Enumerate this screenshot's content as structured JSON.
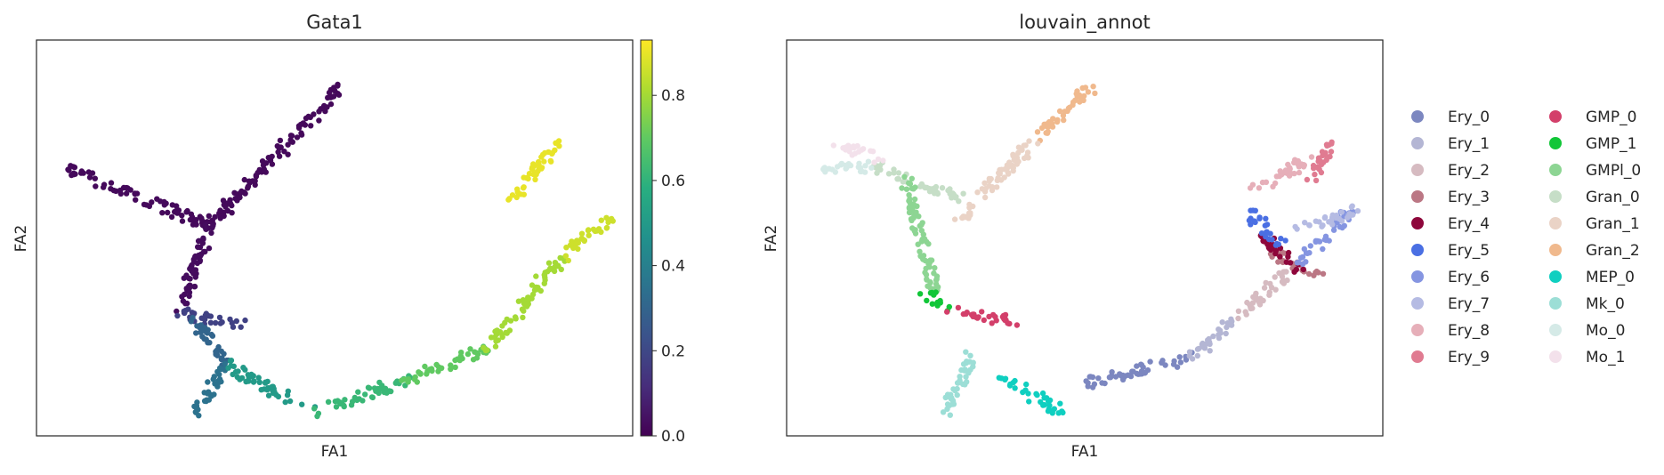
{
  "chart_data": [
    {
      "type": "scatter",
      "title": "Gata1",
      "xlabel": "FA1",
      "ylabel": "FA2",
      "grid": false,
      "colorbar": {
        "colormap": "viridis",
        "min": 0.0,
        "max": 0.93,
        "ticks": [
          "0.0",
          "0.2",
          "0.4",
          "0.6",
          "0.8"
        ],
        "tick_values": [
          0.0,
          0.2,
          0.4,
          0.6,
          0.8
        ]
      },
      "branches": [
        {
          "from": [
            0.51,
            0.88
          ],
          "to": [
            0.29,
            0.53
          ],
          "value": 0.02
        },
        {
          "from": [
            0.29,
            0.53
          ],
          "to": [
            0.05,
            0.68
          ],
          "value": 0.02
        },
        {
          "from": [
            0.29,
            0.53
          ],
          "to": [
            0.24,
            0.31
          ],
          "value": 0.03
        },
        {
          "from": [
            0.24,
            0.31
          ],
          "to": [
            0.35,
            0.28
          ],
          "value": 0.18
        },
        {
          "from": [
            0.26,
            0.3
          ],
          "to": [
            0.32,
            0.18
          ],
          "value": 0.3
        },
        {
          "from": [
            0.32,
            0.18
          ],
          "to": [
            0.27,
            0.06
          ],
          "value": 0.35
        },
        {
          "from": [
            0.32,
            0.18
          ],
          "to": [
            0.46,
            0.06
          ],
          "value": 0.5
        },
        {
          "from": [
            0.46,
            0.06
          ],
          "to": [
            0.62,
            0.14
          ],
          "value": 0.62
        },
        {
          "from": [
            0.62,
            0.14
          ],
          "to": [
            0.76,
            0.22
          ],
          "value": 0.7
        },
        {
          "from": [
            0.76,
            0.22
          ],
          "to": [
            0.88,
            0.45
          ],
          "value": 0.8
        },
        {
          "from": [
            0.88,
            0.45
          ],
          "to": [
            0.96,
            0.55
          ],
          "value": 0.86
        },
        {
          "from": [
            0.8,
            0.6
          ],
          "to": [
            0.88,
            0.75
          ],
          "value": 0.9
        }
      ]
    },
    {
      "type": "scatter",
      "title": "louvain_annot",
      "xlabel": "FA1",
      "ylabel": "FA2",
      "grid": false,
      "legend_position": "right",
      "legend": [
        {
          "name": "Ery_0",
          "color": "#7c87c0"
        },
        {
          "name": "Ery_1",
          "color": "#b4b6d4"
        },
        {
          "name": "Ery_2",
          "color": "#d6bbc1"
        },
        {
          "name": "Ery_3",
          "color": "#bb7784"
        },
        {
          "name": "Ery_4",
          "color": "#8e063b"
        },
        {
          "name": "Ery_5",
          "color": "#4a6fe3"
        },
        {
          "name": "Ery_6",
          "color": "#8595e1"
        },
        {
          "name": "Ery_7",
          "color": "#b5bbe3"
        },
        {
          "name": "Ery_8",
          "color": "#e6afb9"
        },
        {
          "name": "Ery_9",
          "color": "#e07b91"
        },
        {
          "name": "GMP_0",
          "color": "#d33f6a"
        },
        {
          "name": "GMP_1",
          "color": "#11c638"
        },
        {
          "name": "GMPl_0",
          "color": "#8dd593"
        },
        {
          "name": "Gran_0",
          "color": "#c6dec7"
        },
        {
          "name": "Gran_1",
          "color": "#ead3c6"
        },
        {
          "name": "Gran_2",
          "color": "#f0b98d"
        },
        {
          "name": "MEP_0",
          "color": "#0fcfc0"
        },
        {
          "name": "Mk_0",
          "color": "#9cded6"
        },
        {
          "name": "Mo_0",
          "color": "#d5eae7"
        },
        {
          "name": "Mo_1",
          "color": "#f3e1eb"
        }
      ],
      "branches": [
        {
          "from": [
            0.51,
            0.88
          ],
          "to": [
            0.42,
            0.75
          ],
          "label": "Gran_2"
        },
        {
          "from": [
            0.42,
            0.75
          ],
          "to": [
            0.29,
            0.55
          ],
          "label": "Gran_1"
        },
        {
          "from": [
            0.29,
            0.6
          ],
          "to": [
            0.15,
            0.68
          ],
          "label": "Gran_0"
        },
        {
          "from": [
            0.15,
            0.68
          ],
          "to": [
            0.05,
            0.68
          ],
          "label": "Mo_0"
        },
        {
          "from": [
            0.08,
            0.74
          ],
          "to": [
            0.16,
            0.7
          ],
          "label": "Mo_1"
        },
        {
          "from": [
            0.2,
            0.65
          ],
          "to": [
            0.25,
            0.36
          ],
          "label": "GMPl_0"
        },
        {
          "from": [
            0.23,
            0.36
          ],
          "to": [
            0.27,
            0.32
          ],
          "label": "GMP_1"
        },
        {
          "from": [
            0.27,
            0.32
          ],
          "to": [
            0.38,
            0.29
          ],
          "label": "GMP_0"
        },
        {
          "from": [
            0.31,
            0.21
          ],
          "to": [
            0.27,
            0.06
          ],
          "label": "Mk_0"
        },
        {
          "from": [
            0.36,
            0.15
          ],
          "to": [
            0.46,
            0.06
          ],
          "label": "MEP_0"
        },
        {
          "from": [
            0.5,
            0.13
          ],
          "to": [
            0.68,
            0.2
          ],
          "label": "Ery_0"
        },
        {
          "from": [
            0.68,
            0.2
          ],
          "to": [
            0.76,
            0.3
          ],
          "label": "Ery_1"
        },
        {
          "from": [
            0.76,
            0.3
          ],
          "to": [
            0.84,
            0.42
          ],
          "label": "Ery_2"
        },
        {
          "from": [
            0.82,
            0.46
          ],
          "to": [
            0.9,
            0.4
          ],
          "label": "Ery_3"
        },
        {
          "from": [
            0.8,
            0.5
          ],
          "to": [
            0.86,
            0.42
          ],
          "label": "Ery_4"
        },
        {
          "from": [
            0.78,
            0.56
          ],
          "to": [
            0.83,
            0.48
          ],
          "label": "Ery_5"
        },
        {
          "from": [
            0.86,
            0.44
          ],
          "to": [
            0.95,
            0.57
          ],
          "label": "Ery_6"
        },
        {
          "from": [
            0.86,
            0.52
          ],
          "to": [
            0.96,
            0.57
          ],
          "label": "Ery_7"
        },
        {
          "from": [
            0.78,
            0.62
          ],
          "to": [
            0.88,
            0.7
          ],
          "label": "Ery_8"
        },
        {
          "from": [
            0.88,
            0.65
          ],
          "to": [
            0.92,
            0.74
          ],
          "label": "Ery_9"
        }
      ]
    }
  ]
}
